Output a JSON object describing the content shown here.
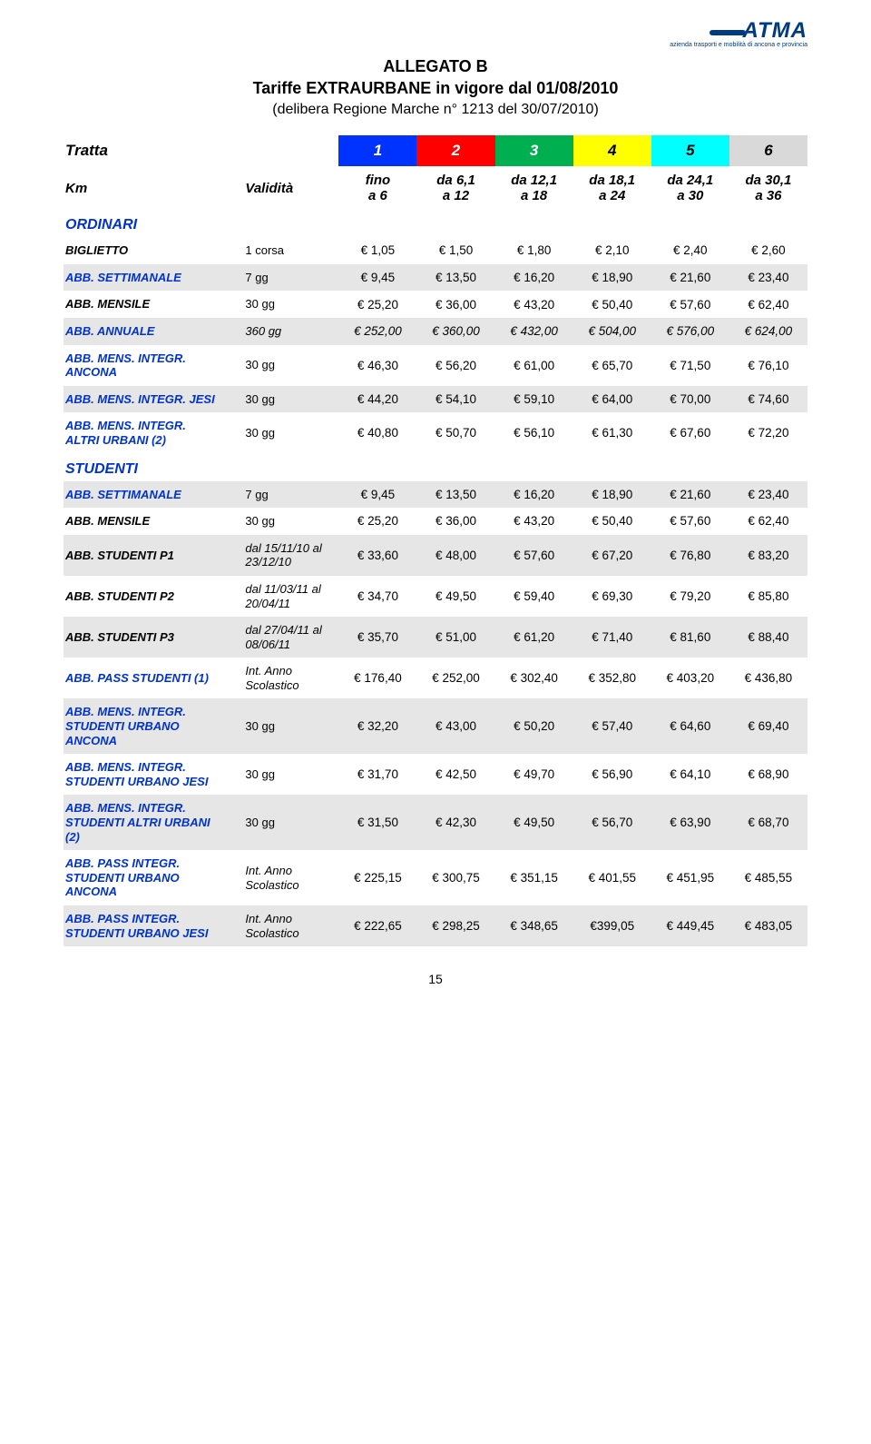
{
  "logo": {
    "text": "ATMA",
    "sub": "azienda trasporti e mobilità di ancona e provincia"
  },
  "title": {
    "line1": "ALLEGATO B",
    "line2": "Tariffe EXTRAURBANE in vigore dal 01/08/2010",
    "line3": "(delibera Regione Marche n° 1213 del 30/07/2010)"
  },
  "colors": {
    "zones": [
      "#0033ff",
      "#ff0000",
      "#00b050",
      "#ffff00",
      "#00ffff",
      "#d9d9d9"
    ],
    "accent": "#0033cc",
    "stripe": "#e6e6e6",
    "text": "#000000",
    "bg": "#ffffff"
  },
  "header": {
    "tratta_label": "Tratta",
    "km_label": "Km",
    "validita_label": "Validità",
    "zones": [
      "1",
      "2",
      "3",
      "4",
      "5",
      "6"
    ],
    "ranges": [
      {
        "a": "fino",
        "b": "a 6"
      },
      {
        "a": "da 6,1",
        "b": "a 12"
      },
      {
        "a": "da 12,1",
        "b": "a 18"
      },
      {
        "a": "da 18,1",
        "b": "a 24"
      },
      {
        "a": "da 24,1",
        "b": "a 30"
      },
      {
        "a": "da 30,1",
        "b": "a 36"
      }
    ]
  },
  "sections": [
    {
      "title": "ORDINARI",
      "rows": [
        {
          "label": "BIGLIETTO",
          "blue": false,
          "validity": "1 corsa",
          "cells": [
            "€ 1,05",
            "€ 1,50",
            "€ 1,80",
            "€ 2,10",
            "€ 2,40",
            "€ 2,60"
          ]
        },
        {
          "label": "ABB. SETTIMANALE",
          "blue": true,
          "validity": "7 gg",
          "cells": [
            "€ 9,45",
            "€ 13,50",
            "€ 16,20",
            "€ 18,90",
            "€ 21,60",
            "€ 23,40"
          ],
          "striped": true
        },
        {
          "label": "ABB. MENSILE",
          "blue": false,
          "validity": "30 gg",
          "cells": [
            "€ 25,20",
            "€ 36,00",
            "€ 43,20",
            "€ 50,40",
            "€ 57,60",
            "€ 62,40"
          ]
        },
        {
          "label": "ABB. ANNUALE",
          "blue": true,
          "validity": "360 gg",
          "italic_row": true,
          "cells": [
            "€ 252,00",
            "€ 360,00",
            "€ 432,00",
            "€ 504,00",
            "€ 576,00",
            "€ 624,00"
          ],
          "striped": true
        },
        {
          "label": "ABB. MENS. INTEGR. ANCONA",
          "blue": true,
          "validity": "30 gg",
          "cells": [
            "€ 46,30",
            "€ 56,20",
            "€ 61,00",
            "€ 65,70",
            "€ 71,50",
            "€ 76,10"
          ]
        },
        {
          "label": "ABB. MENS. INTEGR. JESI",
          "blue": true,
          "validity": "30 gg",
          "cells": [
            "€ 44,20",
            "€ 54,10",
            "€ 59,10",
            "€ 64,00",
            "€ 70,00",
            "€ 74,60"
          ],
          "striped": true
        },
        {
          "label": "ABB. MENS. INTEGR. ALTRI URBANI (2)",
          "blue": true,
          "validity": "30 gg",
          "cells": [
            "€ 40,80",
            "€ 50,70",
            "€ 56,10",
            "€ 61,30",
            "€ 67,60",
            "€ 72,20"
          ]
        }
      ]
    },
    {
      "title": "STUDENTI",
      "rows": [
        {
          "label": "ABB. SETTIMANALE",
          "blue": true,
          "validity": "7 gg",
          "cells": [
            "€ 9,45",
            "€ 13,50",
            "€ 16,20",
            "€ 18,90",
            "€ 21,60",
            "€ 23,40"
          ],
          "striped": true
        },
        {
          "label": "ABB. MENSILE",
          "blue": false,
          "validity": "30 gg",
          "cells": [
            "€ 25,20",
            "€ 36,00",
            "€ 43,20",
            "€ 50,40",
            "€ 57,60",
            "€ 62,40"
          ]
        },
        {
          "label": "ABB. STUDENTI P1",
          "blue": false,
          "validity": "dal 15/11/10  al 23/12/10",
          "italic_val": true,
          "cells": [
            "€ 33,60",
            "€ 48,00",
            "€ 57,60",
            "€ 67,20",
            "€ 76,80",
            "€ 83,20"
          ],
          "striped": true
        },
        {
          "label": "ABB. STUDENTI P2",
          "blue": false,
          "validity": "dal 11/03/11 al 20/04/11",
          "italic_val": true,
          "cells": [
            "€ 34,70",
            "€ 49,50",
            "€ 59,40",
            "€ 69,30",
            "€ 79,20",
            "€ 85,80"
          ]
        },
        {
          "label": "ABB. STUDENTI P3",
          "blue": false,
          "validity": "dal 27/04/11 al 08/06/11",
          "italic_val": true,
          "cells": [
            "€ 35,70",
            "€ 51,00",
            "€ 61,20",
            "€ 71,40",
            "€ 81,60",
            "€ 88,40"
          ],
          "striped": true
        },
        {
          "label": "ABB. PASS STUDENTI (1)",
          "blue": true,
          "validity": "Int. Anno Scolastico",
          "italic_val": true,
          "cells": [
            "€ 176,40",
            "€ 252,00",
            "€ 302,40",
            "€ 352,80",
            "€ 403,20",
            "€ 436,80"
          ]
        },
        {
          "label": "ABB. MENS. INTEGR. STUDENTI URBANO ANCONA",
          "blue": true,
          "validity": "30 gg",
          "cells": [
            "€ 32,20",
            "€ 43,00",
            "€ 50,20",
            "€ 57,40",
            "€ 64,60",
            "€ 69,40"
          ],
          "striped": true
        },
        {
          "label": "ABB. MENS. INTEGR. STUDENTI URBANO JESI",
          "blue": true,
          "validity": "30 gg",
          "cells": [
            "€ 31,70",
            "€ 42,50",
            "€ 49,70",
            "€ 56,90",
            "€ 64,10",
            "€ 68,90"
          ]
        },
        {
          "label": "ABB. MENS. INTEGR. STUDENTI ALTRI URBANI (2)",
          "blue": true,
          "validity": "30 gg",
          "cells": [
            "€ 31,50",
            "€ 42,30",
            "€ 49,50",
            "€ 56,70",
            "€ 63,90",
            "€ 68,70"
          ],
          "striped": true
        },
        {
          "label": "ABB. PASS INTEGR. STUDENTI URBANO ANCONA",
          "blue": true,
          "validity": "Int. Anno Scolastico",
          "italic_val": true,
          "cells": [
            "€ 225,15",
            "€ 300,75",
            "€ 351,15",
            "€ 401,55",
            "€ 451,95",
            "€ 485,55"
          ]
        },
        {
          "label": "ABB. PASS INTEGR. STUDENTI URBANO JESI",
          "blue": true,
          "validity": "Int. Anno Scolastico",
          "italic_val": true,
          "cells": [
            "€ 222,65",
            "€ 298,25",
            "€ 348,65",
            "€399,05",
            "€ 449,45",
            "€ 483,05"
          ],
          "striped": true
        }
      ]
    }
  ],
  "page_number": "15"
}
